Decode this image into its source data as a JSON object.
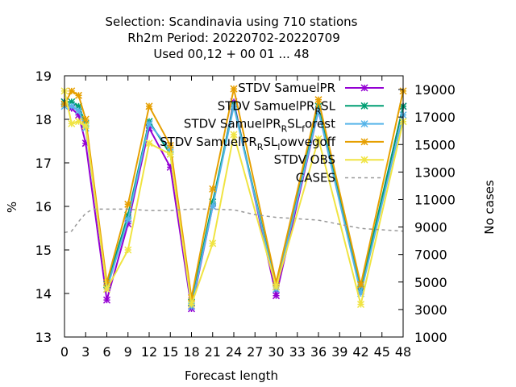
{
  "chart_data": {
    "type": "line",
    "title_lines": [
      "Selection: Scandinavia using   710 stations",
      "Rh2m   Period: 20220702-20220709",
      "Used  00,12  + 00 01 ... 48"
    ],
    "xlabel": "Forecast length",
    "ylabel": "%",
    "y2label": "No cases",
    "xlim": [
      0,
      48
    ],
    "ylim": [
      13,
      19
    ],
    "y2lim": [
      1000,
      20000
    ],
    "x_ticks": [
      0,
      3,
      6,
      9,
      12,
      15,
      18,
      21,
      24,
      27,
      30,
      33,
      36,
      39,
      42,
      45,
      48
    ],
    "y_ticks": [
      13,
      14,
      15,
      16,
      17,
      18,
      19
    ],
    "y2_ticks": [
      1000,
      3000,
      5000,
      7000,
      9000,
      11000,
      13000,
      15000,
      17000,
      19000
    ],
    "legend_position": "top-right",
    "x": [
      0,
      1,
      2,
      3,
      6,
      9,
      12,
      15,
      18,
      21,
      24,
      30,
      36,
      42,
      48
    ],
    "series": [
      {
        "name": "STDV SamuelPR",
        "color": "#9400d3",
        "marker": "x",
        "values": [
          18.4,
          18.25,
          18.1,
          17.45,
          13.85,
          15.6,
          17.8,
          16.9,
          13.65,
          16.0,
          18.4,
          13.95,
          18.2,
          14.05,
          18.3
        ]
      },
      {
        "name": "STDV SamuelPR_RSL",
        "color": "#009e73",
        "marker": "x",
        "values": [
          18.4,
          18.4,
          18.3,
          17.9,
          14.2,
          15.8,
          17.95,
          17.2,
          13.8,
          16.1,
          18.35,
          14.15,
          18.3,
          14.1,
          18.3
        ]
      },
      {
        "name": "STDV SamuelPR_RSL_forest",
        "color": "#56b4e9",
        "marker": "x",
        "values": [
          18.3,
          18.3,
          18.2,
          17.8,
          14.1,
          15.7,
          17.9,
          17.3,
          13.7,
          16.0,
          18.3,
          14.1,
          18.2,
          14.0,
          18.1
        ]
      },
      {
        "name": "STDV SamuelPR_RSL_lowvegoff",
        "color": "#e69f00",
        "marker": "x",
        "values": [
          18.35,
          18.65,
          18.55,
          18.0,
          14.25,
          16.05,
          18.3,
          17.4,
          13.9,
          16.4,
          18.7,
          14.25,
          18.45,
          14.2,
          18.65
        ]
      },
      {
        "name": "STDV OBS",
        "color": "#f0e442",
        "marker": "x",
        "values": [
          18.65,
          17.9,
          17.95,
          17.85,
          14.1,
          15.0,
          17.45,
          17.2,
          13.75,
          15.15,
          17.65,
          14.15,
          17.55,
          13.75,
          17.95
        ]
      },
      {
        "name": "CASES",
        "color": "#999999",
        "marker": "none",
        "dash": true,
        "axis": "y2",
        "x": [
          0,
          1,
          2,
          3,
          4,
          6,
          9,
          12,
          15,
          18,
          21,
          24,
          27,
          30,
          33,
          36,
          39,
          42,
          45,
          48
        ],
        "values": [
          8600,
          8700,
          9400,
          10000,
          10300,
          10300,
          10300,
          10200,
          10200,
          10300,
          10300,
          10250,
          9900,
          9700,
          9600,
          9500,
          9200,
          8900,
          8800,
          8700
        ]
      }
    ],
    "legend_labels": [
      {
        "base": "STDV SamuelPR"
      },
      {
        "base": "STDV SamuelPR",
        "sub": "R",
        "rest": "SL"
      },
      {
        "base": "STDV SamuelPR",
        "sub": "R",
        "rest": "SL",
        "sub2": "f",
        "rest2": "orest"
      },
      {
        "base": "STDV SamuelPR",
        "sub": "R",
        "rest": "SL",
        "sub2": "l",
        "rest2": "owvegoff"
      },
      {
        "base": "STDV OBS"
      },
      {
        "base": "CASES"
      }
    ]
  }
}
